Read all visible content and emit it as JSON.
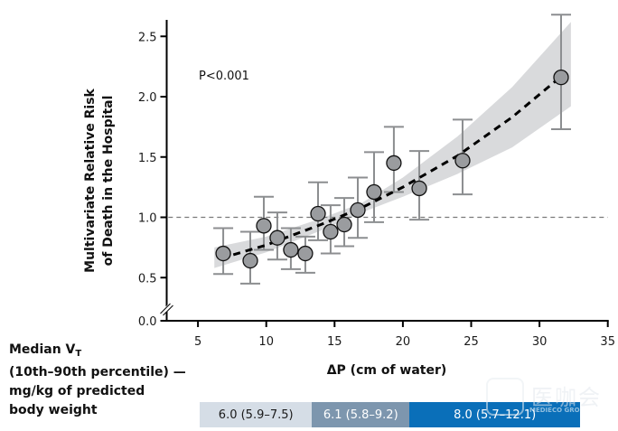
{
  "chart_data": {
    "type": "scatter",
    "title": "",
    "xlabel": "ΔP (cm of water)",
    "ylabel_lines": [
      "Multivariate Relative Risk",
      "of Death in the Hospital"
    ],
    "xlim": [
      2.7,
      35
    ],
    "ylim": [
      0,
      2.7
    ],
    "axis_break": "y between 0.0 and 0.5",
    "x_ticks": [
      5,
      10,
      15,
      20,
      25,
      30,
      35
    ],
    "x_tick_labels": [
      "5",
      "10",
      "15",
      "20",
      "25",
      "30",
      "35"
    ],
    "y_ticks": [
      0.0,
      0.5,
      1.0,
      1.5,
      2.0,
      2.5
    ],
    "y_tick_labels": [
      "0.0",
      "0.5",
      "1.0",
      "1.5",
      "2.0",
      "2.5"
    ],
    "reference_line": {
      "y": 1.0,
      "style": "dashed"
    },
    "annotation": "P<0.001",
    "grid": false,
    "points": [
      {
        "x": 6.85,
        "y": 0.7,
        "lo": 0.53,
        "hi": 0.91
      },
      {
        "x": 8.83,
        "y": 0.64,
        "lo": 0.45,
        "hi": 0.88
      },
      {
        "x": 9.82,
        "y": 0.93,
        "lo": 0.73,
        "hi": 1.17
      },
      {
        "x": 10.81,
        "y": 0.83,
        "lo": 0.65,
        "hi": 1.04
      },
      {
        "x": 11.8,
        "y": 0.73,
        "lo": 0.57,
        "hi": 0.91
      },
      {
        "x": 12.86,
        "y": 0.7,
        "lo": 0.54,
        "hi": 0.84
      },
      {
        "x": 13.79,
        "y": 1.03,
        "lo": 0.81,
        "hi": 1.29
      },
      {
        "x": 14.71,
        "y": 0.88,
        "lo": 0.7,
        "hi": 1.1
      },
      {
        "x": 15.71,
        "y": 0.94,
        "lo": 0.76,
        "hi": 1.16
      },
      {
        "x": 16.7,
        "y": 1.06,
        "lo": 0.83,
        "hi": 1.33
      },
      {
        "x": 17.89,
        "y": 1.21,
        "lo": 0.96,
        "hi": 1.54
      },
      {
        "x": 19.34,
        "y": 1.45,
        "lo": 1.21,
        "hi": 1.75
      },
      {
        "x": 21.2,
        "y": 1.24,
        "lo": 0.98,
        "hi": 1.55
      },
      {
        "x": 24.37,
        "y": 1.47,
        "lo": 1.19,
        "hi": 1.81
      },
      {
        "x": 31.58,
        "y": 2.16,
        "lo": 1.73,
        "hi": 2.68
      }
    ],
    "fit_line": {
      "style": "dashed",
      "x": [
        6.7,
        10,
        14,
        17,
        20,
        24,
        28,
        31.5
      ],
      "y": [
        0.66,
        0.77,
        0.94,
        1.08,
        1.25,
        1.51,
        1.83,
        2.16
      ]
    },
    "confidence_band": {
      "x": [
        6.2,
        10,
        14,
        17,
        20,
        24,
        28,
        32.3
      ],
      "lower": [
        0.58,
        0.71,
        0.89,
        1.04,
        1.17,
        1.36,
        1.58,
        1.92
      ],
      "upper": [
        0.75,
        0.84,
        0.99,
        1.12,
        1.33,
        1.67,
        2.08,
        2.62
      ]
    }
  },
  "legend": {
    "line1": "Median V",
    "line1_sub": "T",
    "line2": "(10th–90th percentile) —",
    "line3": "mg/kg of predicted",
    "line4": "body weight"
  },
  "vt_bars": [
    {
      "label": "6.0 (5.9–7.5)",
      "x_start": 6.0,
      "x_end": 14.2,
      "color": "#d5dde6",
      "text_color": "#1a1a1a"
    },
    {
      "label": "6.1 (5.8–9.2)",
      "x_start": 14.2,
      "x_end": 21.35,
      "color": "#7d96ae",
      "text_color": "#ffffff"
    },
    {
      "label": "8.0 (5.7–12.1)",
      "x_start": 21.35,
      "x_end": 35.0,
      "color": "#0a6fb9",
      "text_color": "#ffffff"
    }
  ],
  "watermark": {
    "cn": "医咖会",
    "en": "MEDIECO GROUP"
  },
  "colors": {
    "point_fill": "#9a9c9f",
    "error_bar": "#8c8e90",
    "band": "#d9dadc",
    "axis": "#000000",
    "reference_line": "#7a7a7a"
  }
}
